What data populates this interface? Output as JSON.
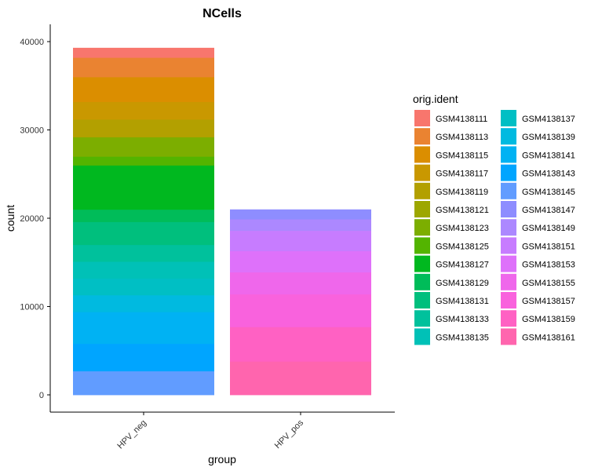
{
  "chart_data": {
    "type": "bar",
    "stacked": true,
    "title": "NCells",
    "xlabel": "group",
    "ylabel": "count",
    "categories": [
      "HPV_neg",
      "HPV_pos"
    ],
    "ylim": [
      0,
      41500
    ],
    "yticks": [
      0,
      10000,
      20000,
      30000,
      40000
    ],
    "ytick_labels": [
      "0",
      "10000",
      "20000",
      "30000",
      "40000"
    ],
    "grid": false,
    "legend_title": "orig.ident",
    "legend_position": "right",
    "series": [
      {
        "name": "GSM4138111",
        "color": "#F8766D",
        "values": [
          1100,
          0
        ]
      },
      {
        "name": "GSM4138113",
        "color": "#EA8331",
        "values": [
          2200,
          0
        ]
      },
      {
        "name": "GSM4138115",
        "color": "#DB8E00",
        "values": [
          2800,
          0
        ]
      },
      {
        "name": "GSM4138117",
        "color": "#C99800",
        "values": [
          2000,
          0
        ]
      },
      {
        "name": "GSM4138119",
        "color": "#B3A000",
        "values": [
          2000,
          0
        ]
      },
      {
        "name": "GSM4138121",
        "color": "#9DA700",
        "values": [
          0,
          0
        ]
      },
      {
        "name": "GSM4138123",
        "color": "#7CAE00",
        "values": [
          2200,
          0
        ]
      },
      {
        "name": "GSM4138125",
        "color": "#53B400",
        "values": [
          1000,
          0
        ]
      },
      {
        "name": "GSM4138127",
        "color": "#00B81F",
        "values": [
          5000,
          0
        ]
      },
      {
        "name": "GSM4138129",
        "color": "#00BC59",
        "values": [
          1400,
          0
        ]
      },
      {
        "name": "GSM4138131",
        "color": "#00BF7D",
        "values": [
          2600,
          0
        ]
      },
      {
        "name": "GSM4138133",
        "color": "#00C19C",
        "values": [
          1900,
          0
        ]
      },
      {
        "name": "GSM4138135",
        "color": "#00C1B7",
        "values": [
          1900,
          0
        ]
      },
      {
        "name": "GSM4138137",
        "color": "#00BFC4",
        "values": [
          1900,
          0
        ]
      },
      {
        "name": "GSM4138139",
        "color": "#00BAE0",
        "values": [
          1900,
          0
        ]
      },
      {
        "name": "GSM4138141",
        "color": "#00B2F3",
        "values": [
          3600,
          0
        ]
      },
      {
        "name": "GSM4138143",
        "color": "#00A5FF",
        "values": [
          3100,
          0
        ]
      },
      {
        "name": "GSM4138145",
        "color": "#619CFF",
        "values": [
          2700,
          0
        ]
      },
      {
        "name": "GSM4138147",
        "color": "#8E8DFF",
        "values": [
          0,
          1100
        ]
      },
      {
        "name": "GSM4138149",
        "color": "#AC88FF",
        "values": [
          0,
          1300
        ]
      },
      {
        "name": "GSM4138151",
        "color": "#C77CFF",
        "values": [
          0,
          2300
        ]
      },
      {
        "name": "GSM4138153",
        "color": "#DE71FA",
        "values": [
          0,
          2400
        ]
      },
      {
        "name": "GSM4138155",
        "color": "#EF67EB",
        "values": [
          0,
          2500
        ]
      },
      {
        "name": "GSM4138157",
        "color": "#F962DD",
        "values": [
          0,
          3700
        ]
      },
      {
        "name": "GSM4138159",
        "color": "#FF61C3",
        "values": [
          0,
          3900
        ]
      },
      {
        "name": "GSM4138161",
        "color": "#FF65AE",
        "values": [
          0,
          3800
        ]
      }
    ]
  }
}
